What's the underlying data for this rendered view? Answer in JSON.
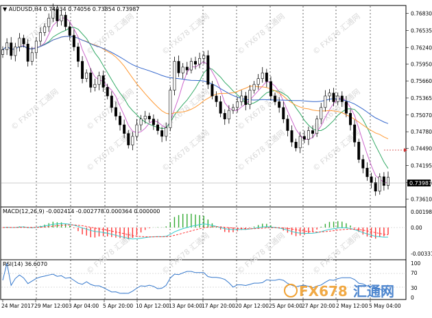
{
  "main_panel": {
    "header_text": "AUDUSD,H4  0.74034 0.74056 0.73854 0.73987",
    "price_ticks": [
      "0.76830",
      "0.76535",
      "0.76240",
      "0.75950",
      "0.75660",
      "0.75365",
      "0.75070",
      "0.74780",
      "0.74490",
      "0.74195",
      "0.73900",
      "0.73610"
    ],
    "current_price": "0.73987",
    "price_range": [
      0.735,
      0.7692
    ]
  },
  "macd_panel": {
    "header_text": "MACD(12,26,9) -0.002414 -0.002778 0.000364 0.000000",
    "ticks": [
      "0.001982",
      "0.00",
      "-0.00331"
    ]
  },
  "rsi_panel": {
    "header_text": "RSI(14) 36.6070",
    "ticks": [
      "100",
      "70",
      "30",
      "0"
    ]
  },
  "time_axis": {
    "labels": [
      "24 Mar 2017",
      "29 Mar 12:00",
      "3 Apr 04:00",
      "5 Apr 20:00",
      "10 Apr 12:00",
      "13 Apr 04:00",
      "17 Apr 20:00",
      "20 Apr 12:00",
      "25 Apr 04:00",
      "27 Apr 20:00",
      "2 May 12:00",
      "5 May 04:00"
    ]
  },
  "watermark": {
    "small_text": "FX678 汇通网",
    "brand_latin": "FX678",
    "brand_cjk": "汇通网"
  },
  "colors": {
    "bull_candle": "#ffffff",
    "bear_candle": "#000000",
    "ma_fast": "#cc66cc",
    "ma_mid": "#33aa66",
    "ma_slow": "#ff9933",
    "ma_long": "#3366cc",
    "macd_signal": "#ff3333",
    "macd_line": "#33cccc",
    "rsi_line": "#3377cc",
    "macd_hist_up": "#33aa33",
    "macd_hist_down": "#ff3333",
    "grid": "#000000"
  },
  "chart_data": {
    "type": "candlestick",
    "symbol": "AUDUSD",
    "timeframe": "H4",
    "last_ohlc": {
      "open": 0.74034,
      "high": 0.74056,
      "low": 0.73854,
      "close": 0.73987
    },
    "closes": [
      0.762,
      0.7632,
      0.761,
      0.7625,
      0.764,
      0.763,
      0.76,
      0.7615,
      0.7635,
      0.765,
      0.766,
      0.7675,
      0.769,
      0.767,
      0.768,
      0.766,
      0.7645,
      0.7625,
      0.76,
      0.757,
      0.758,
      0.7555,
      0.756,
      0.7575,
      0.7555,
      0.754,
      0.752,
      0.7505,
      0.749,
      0.7475,
      0.7455,
      0.747,
      0.749,
      0.75,
      0.7505,
      0.75,
      0.749,
      0.748,
      0.747,
      0.7485,
      0.755,
      0.76,
      0.758,
      0.759,
      0.7585,
      0.76,
      0.7595,
      0.7605,
      0.761,
      0.756,
      0.754,
      0.753,
      0.751,
      0.75,
      0.7515,
      0.752,
      0.753,
      0.754,
      0.7525,
      0.755,
      0.756,
      0.757,
      0.758,
      0.7565,
      0.754,
      0.753,
      0.752,
      0.75,
      0.748,
      0.746,
      0.745,
      0.747,
      0.7465,
      0.748,
      0.7475,
      0.75,
      0.752,
      0.754,
      0.7545,
      0.753,
      0.754,
      0.753,
      0.751,
      0.749,
      0.746,
      0.743,
      0.7415,
      0.74,
      0.739,
      0.7375,
      0.74,
      0.7385,
      0.7399
    ],
    "rsi_last": 36.607,
    "macd_last": {
      "macd": -0.002414,
      "signal": -0.002778,
      "hist": 0.000364
    }
  }
}
